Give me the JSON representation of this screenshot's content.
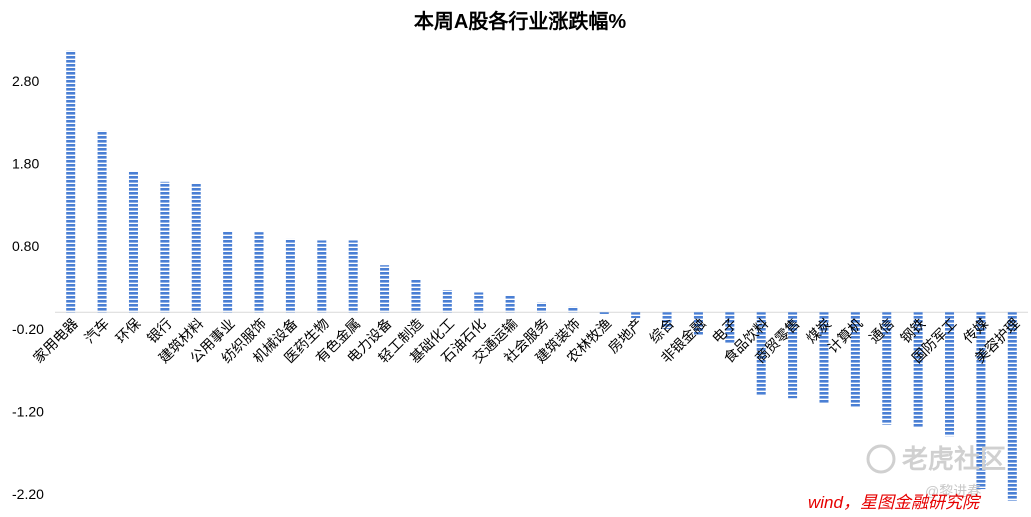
{
  "chart_data": {
    "type": "bar",
    "title": "本周A股各行业涨跌幅%",
    "xlabel": "",
    "ylabel": "",
    "ylim": [
      -2.2,
      3.2
    ],
    "yticks": [
      2.8,
      1.8,
      0.8,
      -0.2,
      -1.2,
      -2.2
    ],
    "ytick_labels": [
      "2.80",
      "1.80",
      "0.80",
      "-0.20",
      "-1.20",
      "-2.20"
    ],
    "grid": false,
    "legend": "none",
    "bar_color": "#4a7fd4",
    "categories": [
      "家用电器",
      "汽车",
      "环保",
      "银行",
      "建筑材料",
      "公用事业",
      "纺织服饰",
      "机械设备",
      "医药生物",
      "有色金属",
      "电力设备",
      "轻工制造",
      "基础化工",
      "石油石化",
      "交通运输",
      "社会服务",
      "建筑装饰",
      "农林牧渔",
      "房地产",
      "综合",
      "非银金融",
      "电子",
      "食品饮料",
      "商贸零售",
      "煤炭",
      "计算机",
      "通信",
      "钢铁",
      "国防军工",
      "传媒",
      "美容护理"
    ],
    "values": [
      3.17,
      2.2,
      1.7,
      1.58,
      1.56,
      0.98,
      0.97,
      0.89,
      0.87,
      0.87,
      0.57,
      0.4,
      0.27,
      0.24,
      0.2,
      0.12,
      0.07,
      -0.02,
      -0.07,
      -0.2,
      -0.27,
      -0.37,
      -1.0,
      -1.04,
      -1.1,
      -1.14,
      -1.36,
      -1.4,
      -1.5,
      -2.14,
      -2.28
    ],
    "source_note": "wind，星图金融研究院"
  },
  "watermark": {
    "brand": "老虎社区",
    "handle": "@黎进春"
  }
}
